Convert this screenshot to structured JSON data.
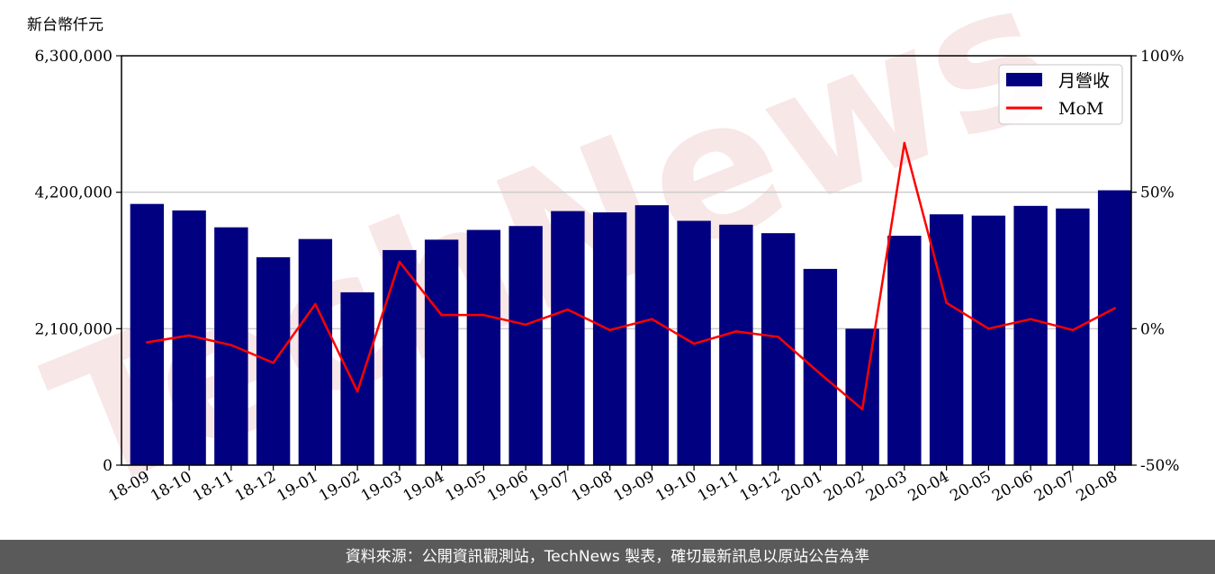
{
  "colors": {
    "bar": "#000080",
    "line": "#ff0000",
    "grid": "#cccccc",
    "footer_bg": "#5a5a5a",
    "watermark": "#f3d5d5"
  },
  "watermark_text": "TechNews",
  "footer": {
    "text": "資料來源：公開資訊觀測站，TechNews 製表，確切最新訊息以原站公告為準"
  },
  "chart_data": {
    "type": "bar",
    "ylabel": "新台幣仟元",
    "categories": [
      "18-09",
      "18-10",
      "18-11",
      "18-12",
      "19-01",
      "19-02",
      "19-03",
      "19-04",
      "19-05",
      "19-06",
      "19-07",
      "19-08",
      "19-09",
      "19-10",
      "19-11",
      "19-12",
      "20-01",
      "20-02",
      "20-03",
      "20-04",
      "20-05",
      "20-06",
      "20-07",
      "20-08"
    ],
    "ylim": [
      0,
      6300000
    ],
    "yticks": [
      0,
      2100000,
      4200000,
      6300000
    ],
    "ytick_labels": [
      "0",
      "2,100,000",
      "4,200,000",
      "6,300,000"
    ],
    "y2lim": [
      -50,
      100
    ],
    "y2ticks": [
      -50,
      0,
      50,
      100
    ],
    "y2tick_labels": [
      "-50%",
      "0%",
      "50%",
      "100%"
    ],
    "grid": true,
    "legend_position": "top-right",
    "series": [
      {
        "name": "月營收",
        "type": "bar",
        "axis": "left",
        "values": [
          4020000,
          3920000,
          3660000,
          3200000,
          3480000,
          2660000,
          3310000,
          3470000,
          3620000,
          3680000,
          3910000,
          3890000,
          4000000,
          3760000,
          3700000,
          3570000,
          3020000,
          2100000,
          3530000,
          3860000,
          3840000,
          3990000,
          3950000,
          4230000
        ]
      },
      {
        "name": "MoM",
        "type": "line",
        "axis": "right",
        "values": [
          -5,
          -2.5,
          -6,
          -12.5,
          9,
          -23,
          24.5,
          5,
          5,
          1.5,
          7,
          -0.5,
          3.5,
          -5.5,
          -1,
          -3,
          -16.5,
          -29.5,
          68,
          9.5,
          0,
          3.5,
          -0.5,
          7.5
        ]
      }
    ]
  }
}
